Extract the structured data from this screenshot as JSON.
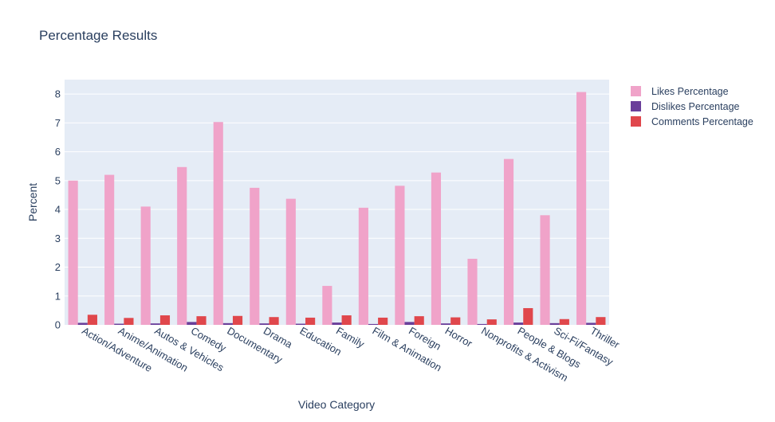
{
  "chart_data": {
    "type": "bar",
    "title": "Percentage Results",
    "xlabel": "Video Category",
    "ylabel": "Percent",
    "ylim": [
      0,
      8.5
    ],
    "yticks": [
      0,
      1,
      2,
      3,
      4,
      5,
      6,
      7,
      8
    ],
    "grid": true,
    "legend_position": "top-right",
    "categories": [
      "Action/Adventure",
      "Anime/Animation",
      "Autos & Vehicles",
      "Comedy",
      "Documentary",
      "Drama",
      "Education",
      "Family",
      "Film & Animation",
      "Foreign",
      "Horror",
      "Nonprofits & Activism",
      "People & Blogs",
      "Sci-Fi/Fantasy",
      "Thriller"
    ],
    "series": [
      {
        "name": "Likes Percentage",
        "color": "#f0a3c9",
        "values": [
          5.0,
          5.2,
          4.1,
          5.47,
          7.03,
          4.75,
          4.37,
          1.35,
          4.06,
          4.82,
          5.28,
          2.29,
          5.75,
          3.8,
          8.07
        ]
      },
      {
        "name": "Dislikes Percentage",
        "color": "#6a3f9a",
        "values": [
          0.07,
          0.04,
          0.05,
          0.1,
          0.06,
          0.05,
          0.04,
          0.08,
          0.03,
          0.1,
          0.05,
          0.03,
          0.08,
          0.06,
          0.07
        ]
      },
      {
        "name": "Comments Percentage",
        "color": "#e0474c",
        "values": [
          0.35,
          0.24,
          0.33,
          0.3,
          0.31,
          0.27,
          0.25,
          0.33,
          0.25,
          0.3,
          0.26,
          0.19,
          0.58,
          0.2,
          0.27
        ]
      }
    ]
  }
}
